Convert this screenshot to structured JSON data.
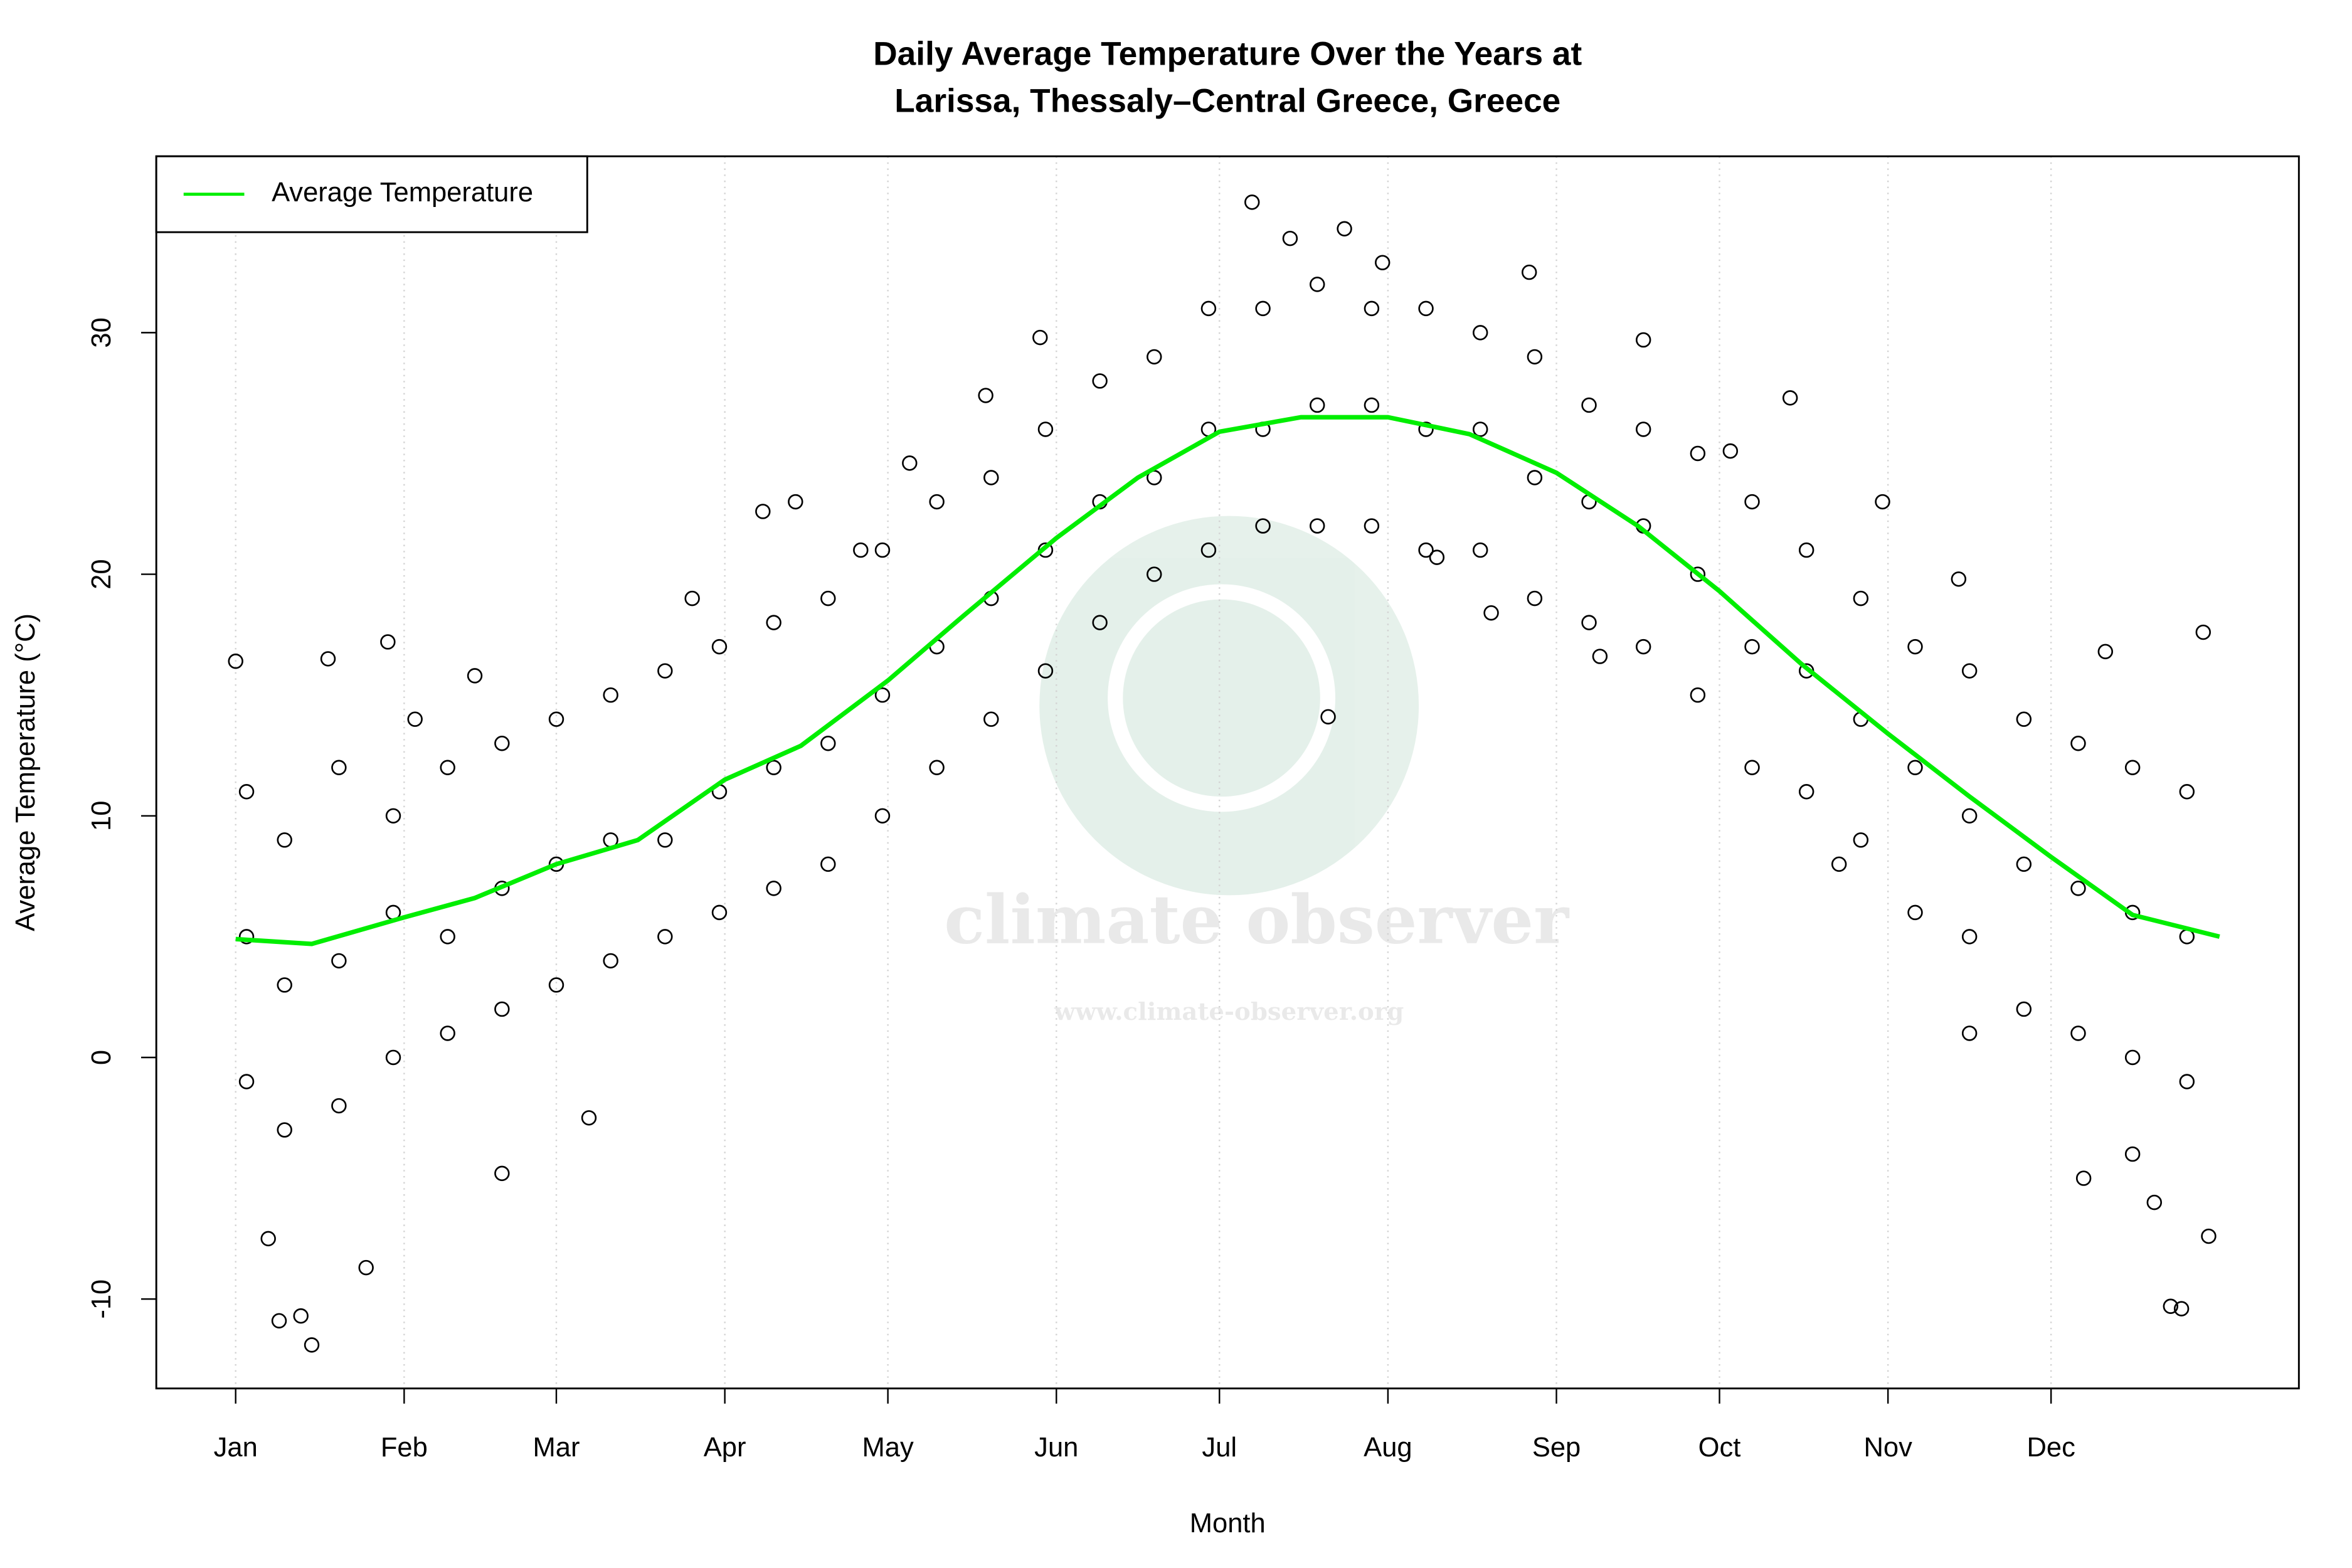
{
  "chart_data": {
    "type": "scatter",
    "title": "Daily Average Temperature Over the Years at",
    "subtitle": "Larissa, Thessaly–Central Greece, Greece",
    "x_label": "Month",
    "y_label": "Average Temperature (°C)",
    "watermark": {
      "text": "climate observer",
      "url": "www.climate-observer.org"
    },
    "xlim": [
      -13.6,
      380.6
    ],
    "ylim": [
      -13.7,
      37.3
    ],
    "xticks": [
      {
        "value": 1,
        "label": "Jan"
      },
      {
        "value": 32,
        "label": "Feb"
      },
      {
        "value": 60,
        "label": "Mar"
      },
      {
        "value": 91,
        "label": "Apr"
      },
      {
        "value": 121,
        "label": "May"
      },
      {
        "value": 152,
        "label": "Jun"
      },
      {
        "value": 182,
        "label": "Jul"
      },
      {
        "value": 213,
        "label": "Aug"
      },
      {
        "value": 244,
        "label": "Sep"
      },
      {
        "value": 274,
        "label": "Oct"
      },
      {
        "value": 305,
        "label": "Nov"
      },
      {
        "value": 335,
        "label": "Dec"
      }
    ],
    "yticks": [
      -10,
      0,
      10,
      20,
      30
    ],
    "grid": "x",
    "legend": "top-left",
    "points": {
      "color": "#000000",
      "x": [
        3,
        3,
        3,
        10,
        10,
        10,
        20,
        20,
        20,
        30,
        30,
        30,
        40,
        40,
        40,
        50,
        50,
        50,
        60,
        60,
        60,
        70,
        70,
        70,
        80,
        80,
        80,
        90,
        90,
        90,
        100,
        100,
        100,
        110,
        110,
        110,
        120,
        120,
        120,
        130,
        130,
        130,
        140,
        140,
        140,
        150,
        150,
        150,
        160,
        160,
        160,
        170,
        170,
        170,
        180,
        180,
        180,
        190,
        190,
        190,
        200,
        200,
        200,
        210,
        210,
        210,
        220,
        220,
        220,
        230,
        230,
        230,
        240,
        240,
        240,
        250,
        250,
        250,
        260,
        260,
        260,
        270,
        270,
        270,
        280,
        280,
        280,
        290,
        290,
        290,
        300,
        300,
        300,
        310,
        310,
        310,
        320,
        320,
        320,
        330,
        330,
        330,
        340,
        340,
        340,
        350,
        350,
        350,
        360,
        360,
        360,
        1,
        9,
        15,
        13,
        18,
        29,
        34,
        50,
        98,
        104,
        116,
        125,
        139,
        149,
        188,
        195,
        205,
        212,
        239,
        260,
        287,
        304,
        320,
        341,
        350,
        354,
        357,
        359,
        364,
        363,
        345,
        202,
        276,
        7,
        25,
        45,
        66,
        85,
        232,
        222,
        252,
        318,
        296
      ],
      "values": [
        11,
        5,
        -1,
        9,
        3,
        -3,
        12,
        4,
        -2,
        10,
        6,
        0,
        12,
        5,
        1,
        13,
        7,
        2,
        14,
        8,
        3,
        15,
        9,
        4,
        16,
        9,
        5,
        17,
        11,
        6,
        18,
        12,
        7,
        19,
        13,
        8,
        21,
        15,
        10,
        23,
        17,
        12,
        24,
        19,
        14,
        26,
        21,
        16,
        28,
        23,
        18,
        29,
        24,
        20,
        31,
        26,
        21,
        31,
        26,
        22,
        32,
        27,
        22,
        31,
        27,
        22,
        31,
        26,
        21,
        30,
        26,
        21,
        29,
        24,
        19,
        27,
        23,
        18,
        26,
        22,
        17,
        25,
        20,
        15,
        23,
        17,
        12,
        21,
        16,
        11,
        19,
        14,
        9,
        17,
        12,
        6,
        16,
        10,
        5,
        14,
        8,
        2,
        13,
        7,
        1,
        12,
        6,
        0,
        11,
        5,
        -1,
        16.4,
        -10.9,
        -11.9,
        -10.7,
        16.5,
        17.2,
        14,
        -4.8,
        22.6,
        23,
        21,
        24.6,
        27.4,
        29.8,
        35.4,
        33.9,
        34.3,
        32.9,
        32.5,
        29.7,
        27.3,
        23,
        1,
        -5,
        -4,
        -6,
        -10.3,
        -10.4,
        -7.4,
        17.6,
        16.8,
        14.1,
        25.1,
        -7.5,
        -8.7,
        15.8,
        -2.5,
        19,
        18.4,
        20.7,
        16.6,
        19.8,
        8
      ]
    },
    "series": [
      {
        "name": "Average Temperature",
        "color": "#00ee00",
        "x": [
          1,
          15,
          32,
          45,
          60,
          75,
          91,
          105,
          121,
          135,
          152,
          167,
          182,
          197,
          213,
          228,
          244,
          259,
          274,
          289,
          305,
          320,
          335,
          350,
          366
        ],
        "values": [
          4.9,
          4.7,
          5.8,
          6.6,
          8.0,
          9.0,
          11.5,
          12.9,
          15.6,
          18.3,
          21.5,
          24.0,
          25.9,
          26.5,
          26.5,
          25.8,
          24.2,
          22.0,
          19.3,
          16.3,
          13.4,
          10.8,
          8.3,
          5.9,
          5.0
        ]
      }
    ]
  }
}
